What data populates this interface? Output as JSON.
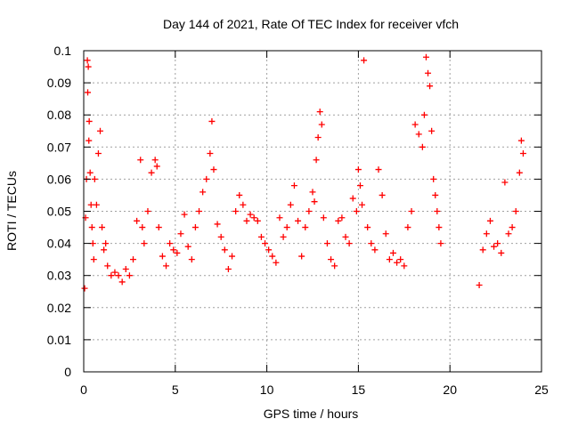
{
  "chart_data": {
    "type": "scatter",
    "title": "Day 144 of 2021, Rate Of TEC Index for receiver vfch",
    "xlabel": "GPS time / hours",
    "ylabel": "ROTI / TECUs",
    "xlim": [
      0,
      25
    ],
    "ylim": [
      0,
      0.1
    ],
    "x_ticks": [
      "0",
      "5",
      "10",
      "15",
      "20",
      "25"
    ],
    "y_ticks": [
      "0",
      "0.01",
      "0.02",
      "0.03",
      "0.04",
      "0.05",
      "0.06",
      "0.07",
      "0.08",
      "0.09",
      "0.1"
    ],
    "grid": true,
    "marker": "+",
    "color": "#ff0000",
    "legend": "none",
    "series": [
      {
        "x": [
          0.05,
          0.1,
          0.15,
          0.2,
          0.22,
          0.25,
          0.28,
          0.3,
          0.35,
          0.4,
          0.45,
          0.5,
          0.55,
          0.6,
          0.7,
          0.8,
          0.9,
          1.0,
          1.1,
          1.2,
          1.3,
          1.5,
          1.7,
          1.9,
          2.1,
          2.3,
          2.5,
          2.7,
          2.9,
          3.1,
          3.2,
          3.3,
          3.5,
          3.7,
          3.9,
          4.0,
          4.1,
          4.3,
          4.5,
          4.7,
          4.9,
          5.1,
          5.3,
          5.5,
          5.7,
          5.9,
          6.1,
          6.3,
          6.5,
          6.7,
          6.9,
          7.0,
          7.1,
          7.3,
          7.5,
          7.7,
          7.9,
          8.1,
          8.3,
          8.5,
          8.7,
          8.9,
          9.1,
          9.3,
          9.5,
          9.7,
          9.9,
          10.1,
          10.3,
          10.5,
          10.7,
          10.9,
          11.1,
          11.3,
          11.5,
          11.7,
          11.9,
          12.1,
          12.3,
          12.5,
          12.6,
          12.7,
          12.8,
          12.9,
          13.0,
          13.1,
          13.3,
          13.5,
          13.7,
          13.9,
          14.1,
          14.3,
          14.5,
          14.7,
          14.9,
          15.0,
          15.1,
          15.2,
          15.3,
          15.5,
          15.7,
          15.9,
          16.1,
          16.3,
          16.5,
          16.7,
          16.9,
          17.1,
          17.3,
          17.5,
          17.7,
          17.9,
          18.1,
          18.3,
          18.5,
          18.6,
          18.7,
          18.8,
          18.9,
          19.0,
          19.1,
          19.2,
          19.3,
          19.4,
          19.5,
          21.6,
          21.8,
          22.0,
          22.2,
          22.4,
          22.6,
          22.8,
          23.0,
          23.2,
          23.4,
          23.6,
          23.8,
          23.9,
          24.0
        ],
        "y": [
          0.026,
          0.048,
          0.06,
          0.097,
          0.087,
          0.095,
          0.072,
          0.078,
          0.062,
          0.052,
          0.045,
          0.04,
          0.035,
          0.06,
          0.052,
          0.068,
          0.075,
          0.045,
          0.038,
          0.04,
          0.033,
          0.03,
          0.031,
          0.03,
          0.028,
          0.032,
          0.03,
          0.035,
          0.047,
          0.066,
          0.045,
          0.04,
          0.05,
          0.062,
          0.066,
          0.064,
          0.045,
          0.036,
          0.033,
          0.04,
          0.038,
          0.037,
          0.043,
          0.049,
          0.039,
          0.035,
          0.045,
          0.05,
          0.056,
          0.06,
          0.068,
          0.078,
          0.063,
          0.046,
          0.042,
          0.038,
          0.032,
          0.036,
          0.05,
          0.055,
          0.052,
          0.047,
          0.049,
          0.048,
          0.047,
          0.042,
          0.04,
          0.038,
          0.036,
          0.034,
          0.048,
          0.042,
          0.045,
          0.052,
          0.058,
          0.047,
          0.036,
          0.045,
          0.05,
          0.056,
          0.053,
          0.066,
          0.073,
          0.081,
          0.077,
          0.048,
          0.04,
          0.035,
          0.033,
          0.047,
          0.048,
          0.042,
          0.04,
          0.054,
          0.05,
          0.063,
          0.058,
          0.052,
          0.097,
          0.045,
          0.04,
          0.038,
          0.063,
          0.055,
          0.043,
          0.035,
          0.037,
          0.034,
          0.035,
          0.033,
          0.045,
          0.05,
          0.077,
          0.074,
          0.07,
          0.08,
          0.098,
          0.093,
          0.089,
          0.075,
          0.06,
          0.055,
          0.05,
          0.045,
          0.04,
          0.027,
          0.038,
          0.043,
          0.047,
          0.039,
          0.04,
          0.037,
          0.059,
          0.043,
          0.045,
          0.05,
          0.062,
          0.072,
          0.068
        ]
      }
    ]
  }
}
